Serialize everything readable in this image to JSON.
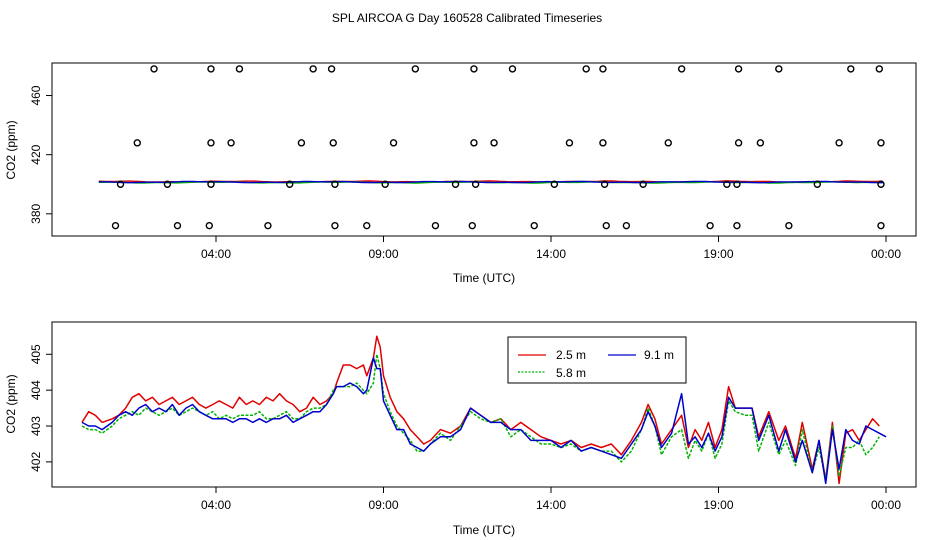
{
  "title": "SPL AIRCOA G  Day 160528  Calibrated Timeseries",
  "chart_data": [
    {
      "type": "scatter+line",
      "xlabel": "Time (UTC)",
      "ylabel": "CO2 (ppm)",
      "xlim": [
        0,
        24
      ],
      "ylim": [
        365,
        482
      ],
      "xticks": [
        {
          "value": 4,
          "label": "04:00"
        },
        {
          "value": 9,
          "label": "09:00"
        },
        {
          "value": 14,
          "label": "14:00"
        },
        {
          "value": 19,
          "label": "19:00"
        },
        {
          "value": 24,
          "label": "00:00"
        }
      ],
      "yticks": [
        {
          "value": 380,
          "label": "380"
        },
        {
          "value": 420,
          "label": "420"
        },
        {
          "value": 460,
          "label": "460"
        }
      ],
      "calibration_points": {
        "x": [
          2.15,
          3.85,
          4.7,
          6.9,
          7.45,
          9.95,
          11.7,
          12.85,
          15.05,
          15.55,
          17.9,
          19.6,
          20.8,
          22.95,
          23.8,
          1.65,
          3.85,
          4.45,
          6.55,
          7.5,
          9.3,
          11.7,
          12.3,
          14.55,
          15.55,
          17.5,
          19.6,
          20.25,
          22.6,
          23.85,
          1.15,
          2.55,
          3.85,
          6.2,
          7.55,
          9.05,
          11.15,
          11.75,
          14.1,
          15.6,
          16.75,
          19.25,
          19.55,
          21.95,
          23.85,
          1.0,
          2.85,
          3.8,
          5.55,
          7.55,
          8.5,
          10.55,
          11.65,
          13.5,
          15.65,
          16.25,
          18.75,
          19.55,
          21.1,
          23.85
        ],
        "y": [
          478,
          478,
          478,
          478,
          478,
          478,
          478,
          478,
          478,
          478,
          478,
          478,
          478,
          478,
          478,
          428,
          428,
          428,
          428,
          428,
          428,
          428,
          428,
          428,
          428,
          428,
          428,
          428,
          428,
          428,
          400,
          400,
          400,
          400,
          400,
          400,
          400,
          400,
          400,
          400,
          400,
          400,
          400,
          400,
          400,
          372,
          372,
          372,
          372,
          372,
          372,
          372,
          372,
          372,
          372,
          372,
          372,
          372,
          372,
          372
        ]
      },
      "series": [
        {
          "name": "2.5 m",
          "color": "#e00000",
          "base": 401.8,
          "amp": 0.25
        },
        {
          "name": "5.8 m",
          "color": "#00b400",
          "base": 401.2,
          "amp": 0.25
        },
        {
          "name": "9.1 m",
          "color": "#0000cc",
          "base": 401.5,
          "amp": 0.3
        }
      ]
    },
    {
      "type": "line",
      "xlabel": "Time (UTC)",
      "ylabel": "CO2 (ppm)",
      "xlim": [
        0,
        24
      ],
      "ylim": [
        401.3,
        405.9
      ],
      "xticks": [
        {
          "value": 4,
          "label": "04:00"
        },
        {
          "value": 9,
          "label": "09:00"
        },
        {
          "value": 14,
          "label": "14:00"
        },
        {
          "value": 19,
          "label": "19:00"
        },
        {
          "value": 24,
          "label": "00:00"
        }
      ],
      "yticks": [
        {
          "value": 402,
          "label": "402"
        },
        {
          "value": 403,
          "label": "403"
        },
        {
          "value": 404,
          "label": "404"
        },
        {
          "value": 405,
          "label": "405"
        }
      ],
      "legend": {
        "position": "top-center",
        "entries": [
          "2.5 m",
          "9.1 m",
          "5.8 m"
        ]
      },
      "series": [
        {
          "name": "2.5 m",
          "color": "#e00000",
          "x": [
            0.0,
            0.2,
            0.4,
            0.6,
            0.9,
            1.1,
            1.3,
            1.5,
            1.7,
            1.9,
            2.1,
            2.3,
            2.5,
            2.7,
            2.9,
            3.1,
            3.3,
            3.5,
            3.7,
            3.9,
            4.1,
            4.3,
            4.5,
            4.7,
            4.9,
            5.1,
            5.3,
            5.5,
            5.7,
            5.9,
            6.1,
            6.3,
            6.5,
            6.7,
            6.9,
            7.1,
            7.3,
            7.5,
            7.6,
            7.8,
            8.0,
            8.2,
            8.4,
            8.5,
            8.7,
            8.8,
            8.9,
            9.0,
            9.2,
            9.4,
            9.6,
            9.8,
            10.0,
            10.2,
            10.4,
            10.7,
            11.0,
            11.3,
            11.6,
            11.9,
            12.2,
            12.5,
            12.8,
            13.1,
            13.4,
            13.7,
            14.0,
            14.3,
            14.6,
            14.9,
            15.2,
            15.5,
            15.8,
            16.1,
            16.4,
            16.7,
            16.9,
            17.1,
            17.3,
            17.6,
            17.9,
            18.1,
            18.3,
            18.5,
            18.7,
            18.9,
            19.1,
            19.3,
            19.5,
            19.8,
            20.0,
            20.2,
            20.5,
            20.8,
            21.0,
            21.3,
            21.5,
            21.8,
            22.0,
            22.2,
            22.4,
            22.6,
            22.8,
            23.0,
            23.2,
            23.4,
            23.6,
            23.8
          ],
          "y": [
            403.1,
            403.4,
            403.3,
            403.1,
            403.2,
            403.3,
            403.5,
            403.8,
            403.9,
            403.7,
            403.8,
            403.6,
            403.7,
            403.8,
            403.6,
            403.7,
            403.8,
            403.6,
            403.5,
            403.6,
            403.7,
            403.6,
            403.5,
            403.8,
            403.6,
            403.7,
            403.6,
            403.8,
            403.7,
            403.9,
            403.7,
            403.6,
            403.4,
            403.5,
            403.8,
            403.6,
            403.7,
            403.9,
            404.2,
            404.7,
            404.7,
            404.6,
            404.7,
            404.4,
            404.9,
            405.5,
            405.2,
            404.4,
            403.8,
            403.4,
            403.2,
            402.9,
            402.7,
            402.5,
            402.6,
            402.9,
            402.8,
            403.0,
            403.5,
            403.3,
            403.1,
            403.2,
            402.9,
            403.1,
            402.9,
            402.7,
            402.6,
            402.5,
            402.6,
            402.4,
            402.5,
            402.4,
            402.5,
            402.2,
            402.6,
            403.1,
            403.6,
            403.2,
            402.5,
            402.9,
            403.3,
            402.4,
            402.9,
            402.6,
            403.1,
            402.4,
            402.9,
            404.1,
            403.5,
            403.5,
            403.5,
            402.7,
            403.4,
            402.6,
            403.0,
            402.1,
            403.1,
            401.8,
            402.6,
            401.5,
            403.1,
            401.4,
            402.8,
            402.9,
            402.6,
            402.9,
            403.2,
            403.0
          ]
        },
        {
          "name": "5.8 m",
          "color": "#00b400",
          "x": [
            0.0,
            0.2,
            0.4,
            0.6,
            0.9,
            1.1,
            1.3,
            1.5,
            1.7,
            1.9,
            2.1,
            2.3,
            2.5,
            2.7,
            2.9,
            3.1,
            3.3,
            3.5,
            3.7,
            3.9,
            4.1,
            4.3,
            4.5,
            4.7,
            4.9,
            5.1,
            5.3,
            5.5,
            5.7,
            5.9,
            6.1,
            6.3,
            6.5,
            6.7,
            6.9,
            7.1,
            7.3,
            7.5,
            7.6,
            7.8,
            8.0,
            8.2,
            8.4,
            8.5,
            8.7,
            8.8,
            8.9,
            9.0,
            9.2,
            9.4,
            9.6,
            9.8,
            10.0,
            10.2,
            10.4,
            10.7,
            11.0,
            11.3,
            11.6,
            11.9,
            12.2,
            12.5,
            12.8,
            13.1,
            13.4,
            13.7,
            14.0,
            14.3,
            14.6,
            14.9,
            15.2,
            15.5,
            15.8,
            16.1,
            16.4,
            16.7,
            16.9,
            17.1,
            17.3,
            17.6,
            17.9,
            18.1,
            18.3,
            18.5,
            18.7,
            18.9,
            19.1,
            19.3,
            19.5,
            19.8,
            20.0,
            20.2,
            20.5,
            20.8,
            21.0,
            21.3,
            21.5,
            21.8,
            22.0,
            22.2,
            22.4,
            22.6,
            22.8,
            23.0,
            23.2,
            23.4,
            23.6,
            23.8
          ],
          "y": [
            403.0,
            402.9,
            402.9,
            402.8,
            403.0,
            403.2,
            403.3,
            403.4,
            403.3,
            403.5,
            403.4,
            403.3,
            403.4,
            403.5,
            403.3,
            403.4,
            403.5,
            403.4,
            403.3,
            403.4,
            403.2,
            403.3,
            403.2,
            403.3,
            403.3,
            403.3,
            403.4,
            403.2,
            403.2,
            403.3,
            403.4,
            403.2,
            403.2,
            403.4,
            403.5,
            403.5,
            403.6,
            404.0,
            404.1,
            404.1,
            404.1,
            404.2,
            404.0,
            403.9,
            404.2,
            405.0,
            404.6,
            403.9,
            403.4,
            403.0,
            402.8,
            402.6,
            402.3,
            402.3,
            402.5,
            402.8,
            402.6,
            403.0,
            403.4,
            403.2,
            403.1,
            403.2,
            402.7,
            402.9,
            402.7,
            402.5,
            402.5,
            402.4,
            402.5,
            402.3,
            402.4,
            402.3,
            402.3,
            402.0,
            402.3,
            402.9,
            403.5,
            403.0,
            402.2,
            402.7,
            402.9,
            402.1,
            402.6,
            402.3,
            402.8,
            402.1,
            402.5,
            403.7,
            403.4,
            403.3,
            403.3,
            402.3,
            403.1,
            402.2,
            402.6,
            401.9,
            402.9,
            401.7,
            402.4,
            401.5,
            403.0,
            401.6,
            402.4,
            402.4,
            402.6,
            402.2,
            402.4,
            402.7
          ]
        },
        {
          "name": "9.1 m",
          "color": "#0000cc",
          "x": [
            0.0,
            0.2,
            0.4,
            0.6,
            0.9,
            1.1,
            1.3,
            1.5,
            1.7,
            1.9,
            2.1,
            2.3,
            2.5,
            2.7,
            2.9,
            3.1,
            3.3,
            3.5,
            3.7,
            3.9,
            4.1,
            4.3,
            4.5,
            4.7,
            4.9,
            5.1,
            5.3,
            5.5,
            5.7,
            5.9,
            6.1,
            6.3,
            6.5,
            6.7,
            6.9,
            7.1,
            7.3,
            7.5,
            7.6,
            7.8,
            8.0,
            8.2,
            8.4,
            8.5,
            8.7,
            8.8,
            8.9,
            9.0,
            9.2,
            9.4,
            9.6,
            9.8,
            10.0,
            10.2,
            10.4,
            10.7,
            11.0,
            11.3,
            11.6,
            11.9,
            12.2,
            12.5,
            12.8,
            13.1,
            13.4,
            13.7,
            14.0,
            14.3,
            14.6,
            14.9,
            15.2,
            15.5,
            15.8,
            16.1,
            16.4,
            16.7,
            16.9,
            17.1,
            17.3,
            17.6,
            17.9,
            18.1,
            18.3,
            18.5,
            18.7,
            18.9,
            19.1,
            19.3,
            19.5,
            19.8,
            20.0,
            20.2,
            20.5,
            20.8,
            21.0,
            21.3,
            21.5,
            21.8,
            22.0,
            22.2,
            22.4,
            22.6,
            22.8,
            23.0,
            23.2,
            23.4,
            23.6,
            23.8,
            24.0
          ],
          "y": [
            403.1,
            403.0,
            403.0,
            402.9,
            403.1,
            403.3,
            403.4,
            403.3,
            403.5,
            403.6,
            403.4,
            403.5,
            403.4,
            403.6,
            403.3,
            403.5,
            403.6,
            403.4,
            403.3,
            403.2,
            403.2,
            403.2,
            403.1,
            403.2,
            403.2,
            403.1,
            403.2,
            403.1,
            403.2,
            403.2,
            403.3,
            403.1,
            403.2,
            403.3,
            403.4,
            403.4,
            403.6,
            403.9,
            404.1,
            404.1,
            404.2,
            404.1,
            403.9,
            404.0,
            404.9,
            404.6,
            404.6,
            403.7,
            403.3,
            402.9,
            402.9,
            402.5,
            402.4,
            402.3,
            402.5,
            402.7,
            402.7,
            402.9,
            403.5,
            403.3,
            403.1,
            403.1,
            402.9,
            402.9,
            402.6,
            402.6,
            402.6,
            402.4,
            402.6,
            402.3,
            402.4,
            402.3,
            402.2,
            402.1,
            402.5,
            402.9,
            403.4,
            403.0,
            402.4,
            402.8,
            403.9,
            402.5,
            402.7,
            402.4,
            402.8,
            402.3,
            402.7,
            403.8,
            403.5,
            403.5,
            403.5,
            402.6,
            403.3,
            402.3,
            402.9,
            402.0,
            402.6,
            401.7,
            402.6,
            401.4,
            402.9,
            401.8,
            402.9,
            402.6,
            402.5,
            403.0,
            402.9,
            402.8,
            402.7
          ]
        }
      ]
    }
  ]
}
